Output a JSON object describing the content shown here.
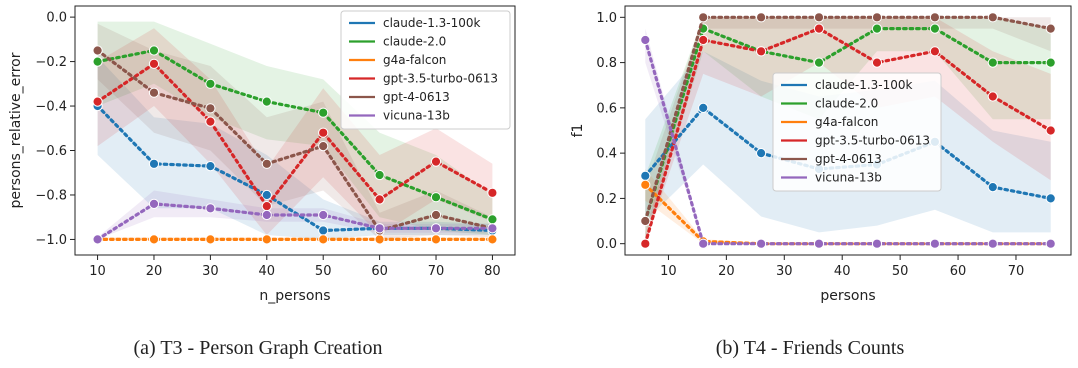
{
  "colors": {
    "claude-1.3-100k": "#1f77b4",
    "claude-2.0": "#2ca02c",
    "g4a-falcon": "#ff7f0e",
    "gpt-3.5-turbo-0613": "#d62728",
    "gpt-4-0613": "#8c564b",
    "vicuna-13b": "#9467bd"
  },
  "chart_data": [
    {
      "type": "line",
      "caption": "(a) T3 - Person Graph Creation",
      "xlabel": "n_persons",
      "ylabel": "persons_relative_error",
      "xlim": [
        6,
        84
      ],
      "ylim": [
        -1.07,
        0.05
      ],
      "xticks": [
        10,
        20,
        30,
        40,
        50,
        60,
        70,
        80
      ],
      "yticks": [
        0.0,
        -0.2,
        -0.4,
        -0.6,
        -0.8,
        -1.0
      ],
      "ytick_labels": [
        "0.0",
        "−0.2",
        "−0.4",
        "−0.6",
        "−0.8",
        "−1.0"
      ],
      "legend_position": "top-right",
      "grid": false,
      "series": [
        {
          "name": "claude-1.3-100k",
          "x": [
            10,
            20,
            30,
            40,
            50,
            60,
            70,
            80
          ],
          "y": [
            -0.4,
            -0.66,
            -0.67,
            -0.8,
            -0.96,
            -0.95,
            -0.95,
            -0.96
          ],
          "upper": [
            -0.18,
            -0.45,
            -0.48,
            -0.62,
            -0.82,
            -0.92,
            -0.92,
            -0.93
          ],
          "lower": [
            -0.62,
            -0.86,
            -0.86,
            -0.98,
            -1.0,
            -0.98,
            -0.98,
            -0.98
          ]
        },
        {
          "name": "claude-2.0",
          "x": [
            10,
            20,
            30,
            40,
            50,
            60,
            70,
            80
          ],
          "y": [
            -0.2,
            -0.15,
            -0.3,
            -0.38,
            -0.43,
            -0.71,
            -0.81,
            -0.91
          ],
          "upper": [
            -0.02,
            -0.02,
            -0.12,
            -0.22,
            -0.28,
            -0.52,
            -0.62,
            -0.8
          ],
          "lower": [
            -0.4,
            -0.3,
            -0.45,
            -0.55,
            -0.58,
            -0.9,
            -0.96,
            -0.98
          ]
        },
        {
          "name": "g4a-falcon",
          "x": [
            10,
            20,
            30,
            40,
            50,
            60,
            70,
            80
          ],
          "y": [
            -1.0,
            -1.0,
            -1.0,
            -1.0,
            -1.0,
            -1.0,
            -1.0,
            -1.0
          ],
          "upper": [
            -0.99,
            -0.99,
            -0.99,
            -0.99,
            -0.99,
            -0.99,
            -0.99,
            -0.99
          ],
          "lower": [
            -1.0,
            -1.0,
            -1.0,
            -1.0,
            -1.0,
            -1.0,
            -1.0,
            -1.0
          ]
        },
        {
          "name": "gpt-3.5-turbo-0613",
          "x": [
            10,
            20,
            30,
            40,
            50,
            60,
            70,
            80
          ],
          "y": [
            -0.38,
            -0.21,
            -0.47,
            -0.85,
            -0.52,
            -0.82,
            -0.65,
            -0.79
          ],
          "upper": [
            -0.2,
            -0.05,
            -0.28,
            -0.68,
            -0.32,
            -0.62,
            -0.5,
            -0.66
          ],
          "lower": [
            -0.58,
            -0.4,
            -0.66,
            -0.98,
            -0.72,
            -0.98,
            -0.82,
            -0.92
          ]
        },
        {
          "name": "gpt-4-0613",
          "x": [
            10,
            20,
            30,
            40,
            50,
            60,
            70,
            80
          ],
          "y": [
            -0.15,
            -0.34,
            -0.41,
            -0.66,
            -0.58,
            -0.96,
            -0.89,
            -0.95
          ],
          "upper": [
            -0.03,
            -0.15,
            -0.22,
            -0.45,
            -0.38,
            -0.88,
            -0.78,
            -0.9
          ],
          "lower": [
            -0.28,
            -0.52,
            -0.6,
            -0.85,
            -0.78,
            -1.0,
            -0.98,
            -0.99
          ]
        },
        {
          "name": "vicuna-13b",
          "x": [
            10,
            20,
            30,
            40,
            50,
            60,
            70,
            80
          ],
          "y": [
            -1.0,
            -0.84,
            -0.86,
            -0.89,
            -0.89,
            -0.95,
            -0.95,
            -0.95
          ],
          "upper": [
            -0.99,
            -0.78,
            -0.82,
            -0.86,
            -0.86,
            -0.93,
            -0.93,
            -0.93
          ],
          "lower": [
            -1.0,
            -0.9,
            -0.9,
            -0.92,
            -0.92,
            -0.97,
            -0.97,
            -0.97
          ]
        }
      ]
    },
    {
      "type": "line",
      "caption": "(b) T4 - Friends Counts",
      "xlabel": "persons",
      "ylabel": "f1",
      "xlim": [
        2.5,
        79.5
      ],
      "ylim": [
        -0.05,
        1.05
      ],
      "xticks": [
        10,
        20,
        30,
        40,
        50,
        60,
        70
      ],
      "yticks": [
        0.0,
        0.2,
        0.4,
        0.6,
        0.8,
        1.0
      ],
      "ytick_labels": [
        "0.0",
        "0.2",
        "0.4",
        "0.6",
        "0.8",
        "1.0"
      ],
      "legend_position": "center",
      "grid": false,
      "series": [
        {
          "name": "claude-1.3-100k",
          "x": [
            6,
            16,
            26,
            36,
            46,
            56,
            66,
            76
          ],
          "y": [
            0.3,
            0.6,
            0.4,
            0.33,
            0.35,
            0.45,
            0.25,
            0.2
          ],
          "upper": [
            0.55,
            0.85,
            0.72,
            0.65,
            0.68,
            0.72,
            0.5,
            0.45
          ],
          "lower": [
            0.1,
            0.35,
            0.12,
            0.05,
            0.08,
            0.15,
            0.05,
            0.05
          ]
        },
        {
          "name": "claude-2.0",
          "x": [
            6,
            16,
            26,
            36,
            46,
            56,
            66,
            76
          ],
          "y": [
            0.1,
            0.95,
            0.85,
            0.8,
            0.95,
            0.95,
            0.8,
            0.8
          ],
          "upper": [
            0.3,
            1.0,
            1.0,
            1.0,
            1.0,
            1.0,
            1.0,
            0.95
          ],
          "lower": [
            0.02,
            0.85,
            0.65,
            0.55,
            0.85,
            0.85,
            0.55,
            0.55
          ]
        },
        {
          "name": "g4a-falcon",
          "x": [
            6,
            16,
            26,
            36,
            46,
            56,
            66,
            76
          ],
          "y": [
            0.26,
            0.01,
            0.0,
            0.0,
            0.0,
            0.0,
            0.0,
            0.0
          ],
          "upper": [
            0.33,
            0.02,
            0.005,
            0.005,
            0.005,
            0.005,
            0.005,
            0.005
          ],
          "lower": [
            0.19,
            0.0,
            0.0,
            0.0,
            0.0,
            0.0,
            0.0,
            0.0
          ]
        },
        {
          "name": "gpt-3.5-turbo-0613",
          "x": [
            6,
            16,
            26,
            36,
            46,
            56,
            66,
            76
          ],
          "y": [
            0.0,
            0.9,
            0.85,
            0.95,
            0.8,
            0.85,
            0.65,
            0.5
          ],
          "upper": [
            0.05,
            1.0,
            1.0,
            1.0,
            1.0,
            1.0,
            0.85,
            0.75
          ],
          "lower": [
            0.0,
            0.75,
            0.65,
            0.8,
            0.6,
            0.65,
            0.45,
            0.28
          ]
        },
        {
          "name": "gpt-4-0613",
          "x": [
            6,
            16,
            26,
            36,
            46,
            56,
            66,
            76
          ],
          "y": [
            0.1,
            1.0,
            1.0,
            1.0,
            1.0,
            1.0,
            1.0,
            0.95
          ],
          "upper": [
            0.25,
            1.0,
            1.0,
            1.0,
            1.0,
            1.0,
            1.0,
            1.0
          ],
          "lower": [
            0.02,
            0.95,
            0.95,
            0.95,
            0.95,
            0.95,
            0.95,
            0.85
          ]
        },
        {
          "name": "vicuna-13b",
          "x": [
            6,
            16,
            26,
            36,
            46,
            56,
            66,
            76
          ],
          "y": [
            0.9,
            0.0,
            0.0,
            0.0,
            0.0,
            0.0,
            0.0,
            0.0
          ],
          "upper": [
            0.95,
            0.01,
            0.005,
            0.005,
            0.005,
            0.005,
            0.005,
            0.005
          ],
          "lower": [
            0.8,
            0.0,
            0.0,
            0.0,
            0.0,
            0.0,
            0.0,
            0.0
          ]
        }
      ]
    }
  ]
}
